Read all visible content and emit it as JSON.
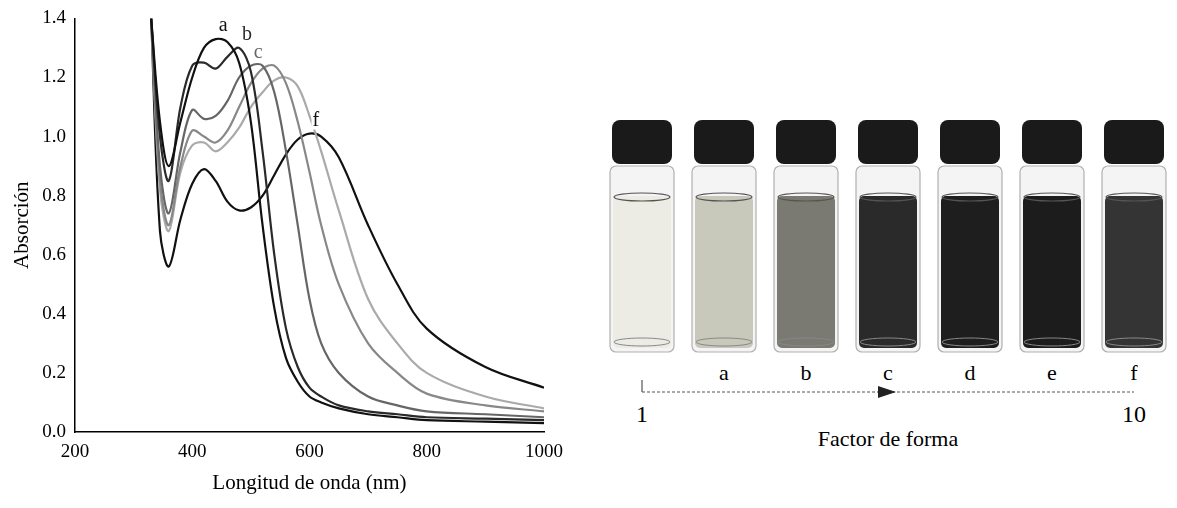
{
  "chart_data": {
    "type": "line",
    "xlabel": "Longitud de onda (nm)",
    "ylabel": "Absorción",
    "x": [
      330,
      345,
      360,
      380,
      400,
      420,
      440,
      460,
      480,
      500,
      520,
      540,
      560,
      580,
      600,
      620,
      650,
      700,
      750,
      800,
      900,
      1000
    ],
    "series": [
      {
        "name": "a",
        "color": "#111111",
        "values": [
          1.4,
          1.05,
          0.9,
          1.05,
          1.2,
          1.3,
          1.33,
          1.32,
          1.25,
          1.05,
          0.7,
          0.42,
          0.25,
          0.17,
          0.12,
          0.1,
          0.08,
          0.06,
          0.05,
          0.04,
          0.035,
          0.03
        ]
      },
      {
        "name": "b",
        "color": "#2a2a2a",
        "values": [
          1.4,
          1.0,
          0.85,
          1.1,
          1.24,
          1.25,
          1.23,
          1.27,
          1.3,
          1.22,
          0.95,
          0.6,
          0.35,
          0.22,
          0.15,
          0.12,
          0.09,
          0.07,
          0.06,
          0.05,
          0.045,
          0.04
        ]
      },
      {
        "name": "c",
        "color": "#666666",
        "values": [
          1.4,
          0.9,
          0.74,
          0.95,
          1.09,
          1.06,
          1.07,
          1.12,
          1.2,
          1.24,
          1.24,
          1.15,
          0.95,
          0.7,
          0.45,
          0.3,
          0.2,
          0.12,
          0.09,
          0.07,
          0.06,
          0.05
        ]
      },
      {
        "name": null,
        "color": "#888888",
        "values": [
          1.4,
          0.85,
          0.7,
          0.9,
          1.02,
          1.0,
          0.98,
          1.02,
          1.1,
          1.18,
          1.23,
          1.24,
          1.18,
          1.05,
          0.88,
          0.7,
          0.5,
          0.3,
          0.2,
          0.13,
          0.09,
          0.07
        ]
      },
      {
        "name": null,
        "color": "#aaaaaa",
        "values": [
          1.4,
          0.82,
          0.68,
          0.88,
          0.97,
          0.98,
          0.95,
          0.98,
          1.03,
          1.1,
          1.15,
          1.19,
          1.2,
          1.17,
          1.07,
          0.95,
          0.75,
          0.45,
          0.3,
          0.2,
          0.12,
          0.08
        ]
      },
      {
        "name": "f",
        "color": "#111111",
        "values": [
          1.4,
          0.68,
          0.56,
          0.72,
          0.84,
          0.89,
          0.85,
          0.78,
          0.75,
          0.76,
          0.8,
          0.87,
          0.94,
          0.99,
          1.01,
          1.0,
          0.93,
          0.7,
          0.5,
          0.35,
          0.22,
          0.15
        ]
      }
    ],
    "xlim": [
      200,
      1000
    ],
    "xticks": [
      200,
      400,
      600,
      800,
      1000
    ],
    "ylim": [
      0,
      1.4
    ],
    "yticks": [
      {
        "value": 0,
        "label": "0.0"
      },
      0.2,
      0.4,
      0.6,
      0.8,
      {
        "value": 1,
        "label": "1.0"
      },
      1.2,
      1.4
    ],
    "grid": false
  },
  "photo": {
    "vial_labels": [
      null,
      "a",
      "b",
      "c",
      "d",
      "e",
      "f"
    ],
    "colors": [
      "#ecece4",
      "#c9c9bb",
      "#7a7a72",
      "#2a2a2a",
      "#1e1e1e",
      "#1c1c1c",
      "#343434"
    ],
    "axis_label": "Factor de forma",
    "axis_start": 1,
    "axis_end": 10
  }
}
